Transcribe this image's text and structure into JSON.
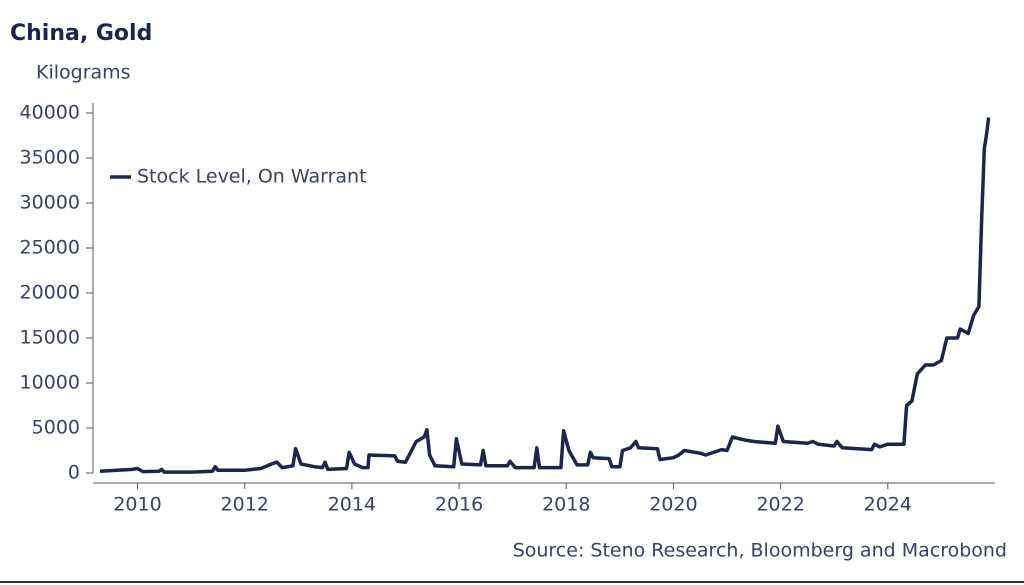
{
  "chart_data": {
    "type": "line",
    "title": "China, Gold",
    "subtitle": "Kilograms",
    "source": "Source: Steno Research, Bloomberg and Macrobond",
    "legend": "upper left",
    "xlim": [
      2009.3,
      2026
    ],
    "xticks": [
      2010,
      2012,
      2014,
      2016,
      2018,
      2020,
      2022,
      2024
    ],
    "ylim": [
      0,
      40000
    ],
    "yticks": [
      0,
      5000,
      10000,
      15000,
      20000,
      25000,
      30000,
      35000,
      40000
    ],
    "x": [
      2009.3,
      2009.9,
      2010.0,
      2010.1,
      2010.4,
      2010.45,
      2010.5,
      2011.0,
      2011.4,
      2011.45,
      2011.5,
      2012.0,
      2012.3,
      2012.5,
      2012.6,
      2012.7,
      2012.9,
      2012.95,
      2013.05,
      2013.3,
      2013.45,
      2013.5,
      2013.55,
      2013.9,
      2013.95,
      2014.05,
      2014.2,
      2014.3,
      2014.32,
      2014.8,
      2014.85,
      2015.0,
      2015.2,
      2015.35,
      2015.4,
      2015.45,
      2015.55,
      2015.9,
      2015.95,
      2016.05,
      2016.4,
      2016.45,
      2016.5,
      2016.9,
      2016.95,
      2017.05,
      2017.4,
      2017.45,
      2017.5,
      2017.9,
      2017.95,
      2018.05,
      2018.2,
      2018.4,
      2018.45,
      2018.5,
      2018.8,
      2018.85,
      2019.0,
      2019.05,
      2019.2,
      2019.3,
      2019.35,
      2019.7,
      2019.75,
      2020.0,
      2020.1,
      2020.2,
      2020.5,
      2020.6,
      2020.9,
      2021.0,
      2021.1,
      2021.3,
      2021.5,
      2021.9,
      2021.95,
      2022.05,
      2022.5,
      2022.6,
      2022.7,
      2023.0,
      2023.05,
      2023.15,
      2023.7,
      2023.75,
      2023.85,
      2024.0,
      2024.3,
      2024.35,
      2024.45,
      2024.55,
      2024.7,
      2024.85,
      2025.0,
      2025.1,
      2025.3,
      2025.35,
      2025.5,
      2025.6,
      2025.7,
      2025.75,
      2025.8,
      2025.85,
      2025.88
    ],
    "series": [
      {
        "name": "Stock Level, On Warrant",
        "color": "#1c2550",
        "values": [
          200,
          400,
          500,
          150,
          200,
          400,
          100,
          100,
          200,
          700,
          300,
          300,
          500,
          1000,
          1200,
          600,
          800,
          2700,
          1000,
          700,
          600,
          1200,
          400,
          500,
          2300,
          1000,
          600,
          600,
          2000,
          1900,
          1300,
          1200,
          3500,
          4000,
          4800,
          2000,
          800,
          700,
          3800,
          1000,
          900,
          2500,
          800,
          800,
          1300,
          600,
          600,
          2800,
          600,
          600,
          4700,
          2500,
          900,
          900,
          2300,
          1700,
          1600,
          700,
          700,
          2500,
          2800,
          3500,
          2800,
          2700,
          1500,
          1700,
          2000,
          2500,
          2200,
          2000,
          2600,
          2500,
          4000,
          3700,
          3500,
          3300,
          5200,
          3500,
          3300,
          3500,
          3200,
          3000,
          3500,
          2800,
          2600,
          3200,
          2900,
          3200,
          3200,
          7500,
          8000,
          11000,
          12000,
          12000,
          12500,
          15000,
          15000,
          16000,
          15500,
          17500,
          18500,
          28000,
          36000,
          38000,
          39500
        ]
      }
    ]
  }
}
